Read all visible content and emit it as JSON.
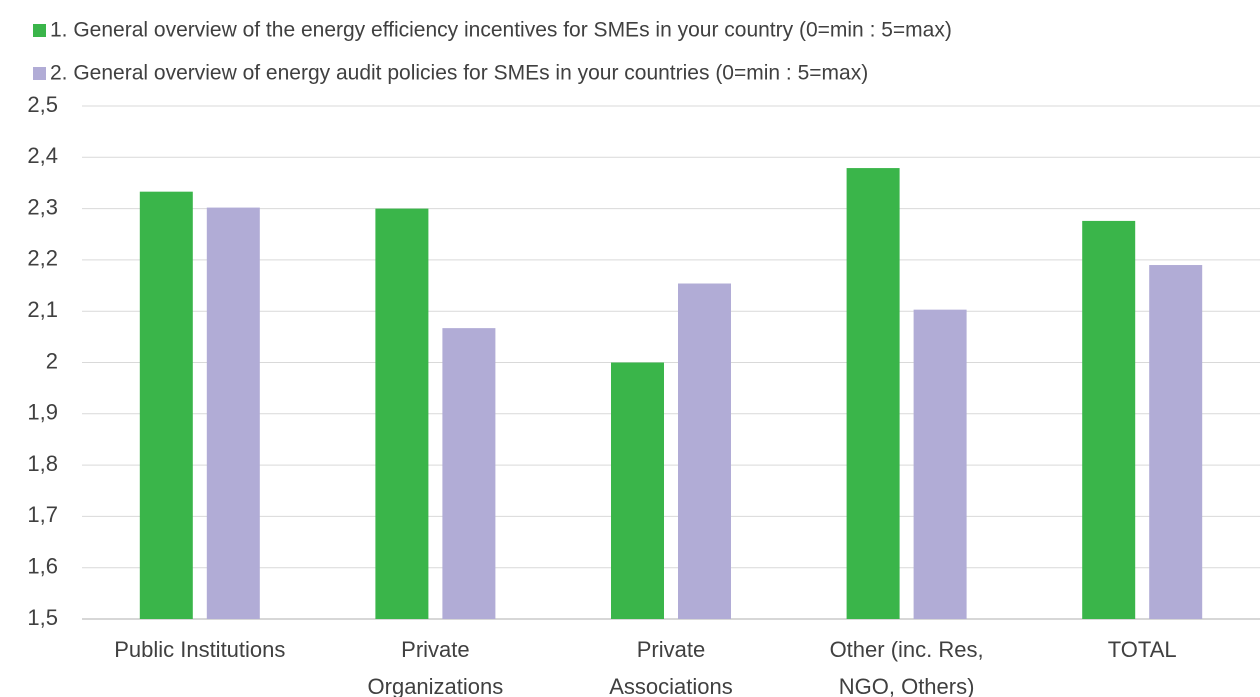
{
  "chart_data": {
    "type": "bar",
    "categories": [
      [
        "Public Institutions"
      ],
      [
        "Private",
        "Organizations"
      ],
      [
        "Private",
        "Associations"
      ],
      [
        "Other (inc. Res,",
        "NGO, Others)"
      ],
      [
        "TOTAL"
      ]
    ],
    "series": [
      {
        "name": "1. General overview of the energy efficiency incentives for SMEs in your country (0=min : 5=max)",
        "color": "#3ab54a",
        "values": [
          2.333,
          2.3,
          2.0,
          2.379,
          2.276
        ]
      },
      {
        "name": "2. General overview of energy audit policies for SMEs in your countries (0=min : 5=max)",
        "color": "#b1acd6",
        "values": [
          2.302,
          2.067,
          2.154,
          2.103,
          2.19
        ]
      }
    ],
    "ylim": [
      1.5,
      2.5
    ],
    "yticks": [
      "1,5",
      "1,6",
      "1,7",
      "1,8",
      "1,9",
      "2",
      "2,1",
      "2,2",
      "2,3",
      "2,4",
      "2,5"
    ],
    "grid": true,
    "legend_position": "top"
  }
}
